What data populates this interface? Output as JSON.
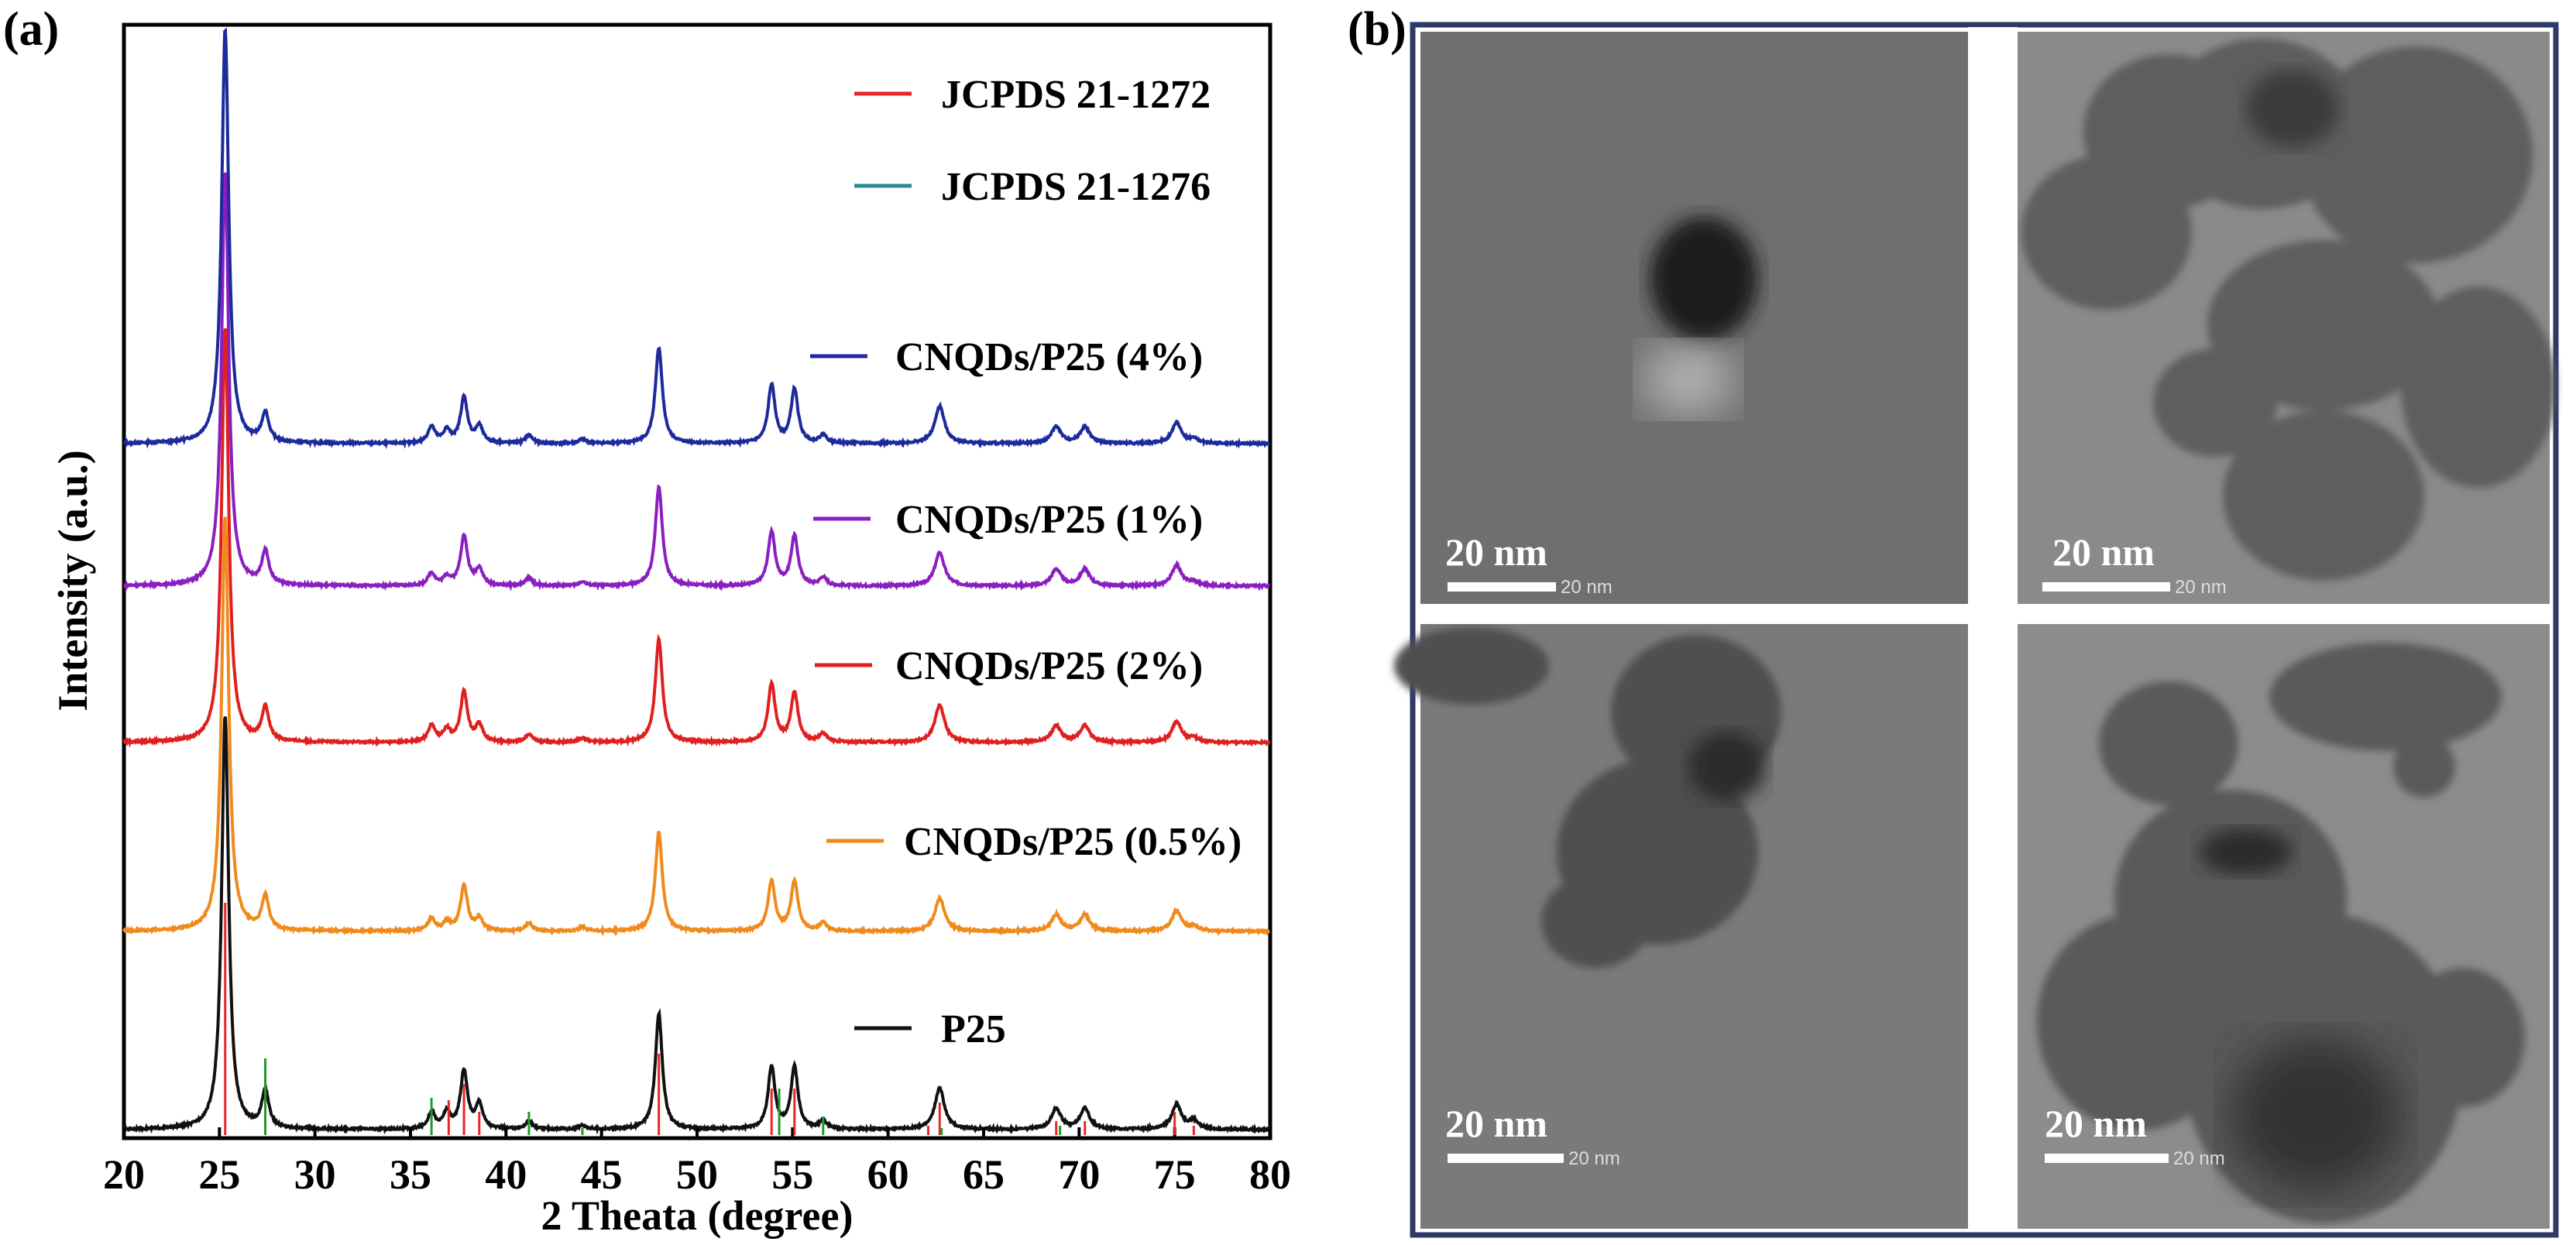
{
  "panels": {
    "a_label": "(a)",
    "b_label": "(b)"
  },
  "chart_data": {
    "type": "line",
    "xlabel": "2 Theata (degree)",
    "ylabel": "Intensity (a.u.)",
    "xlim": [
      20,
      80
    ],
    "xticks": [
      "20",
      "25",
      "30",
      "35",
      "40",
      "45",
      "50",
      "55",
      "60",
      "65",
      "70",
      "75",
      "80"
    ],
    "grid": false,
    "legend_placement": "inline-right",
    "peak_positions": [
      25.3,
      27.4,
      36.1,
      36.9,
      37.8,
      38.6,
      41.2,
      44.0,
      48.0,
      53.9,
      55.1,
      56.6,
      62.7,
      68.8,
      70.3,
      75.1,
      76.0
    ],
    "series": [
      {
        "name": "CNQDs/P25 (4%)",
        "color": "#1c2a9c",
        "intensities": [
          100,
          7,
          4,
          3,
          11,
          4,
          2,
          1,
          23,
          14,
          13,
          2,
          9,
          4,
          4,
          5,
          1
        ]
      },
      {
        "name": "CNQDs/P25 (1%)",
        "color": "#8a1fc0",
        "intensities": [
          100,
          8,
          3,
          2,
          12,
          4,
          2,
          1,
          24,
          13,
          12,
          2,
          8,
          4,
          4,
          5,
          1
        ]
      },
      {
        "name": "CNQDs/P25 (2%)",
        "color": "#e0201f",
        "intensities": [
          100,
          8,
          4,
          3,
          12,
          4,
          2,
          1,
          25,
          14,
          12,
          2,
          9,
          4,
          4,
          5,
          1
        ]
      },
      {
        "name": "CNQDs/P25 (0.5%)",
        "color": "#f08a1c",
        "intensities": [
          100,
          8,
          3,
          2,
          11,
          3,
          2,
          1,
          24,
          12,
          12,
          2,
          8,
          4,
          4,
          5,
          1
        ]
      },
      {
        "name": "P25",
        "color": "#111111",
        "intensities": [
          100,
          9,
          4,
          4,
          14,
          6,
          2,
          1,
          28,
          15,
          15,
          2,
          10,
          5,
          5,
          6,
          2
        ]
      }
    ],
    "references": [
      {
        "name": "JCPDS 21-1272",
        "color": "#e8262a",
        "positions": [
          25.3,
          37.0,
          37.8,
          38.6,
          48.0,
          53.9,
          55.1,
          62.1,
          62.7,
          68.8,
          70.3,
          75.0,
          76.0
        ],
        "intensities": [
          100,
          15,
          22,
          10,
          35,
          20,
          20,
          4,
          14,
          6,
          6,
          10,
          4
        ]
      },
      {
        "name": "JCPDS 21-1276",
        "color": "#2a8a8c",
        "positions": [
          27.4,
          36.1,
          41.2,
          44.0,
          54.3,
          56.6,
          62.8,
          69.0
        ],
        "intensities": [
          33,
          16,
          10,
          3,
          20,
          8,
          3,
          4
        ]
      }
    ]
  },
  "tem": {
    "scale_label": "20 nm",
    "scale_small_label": "20 nm",
    "frame_color": "#2b3a67"
  }
}
